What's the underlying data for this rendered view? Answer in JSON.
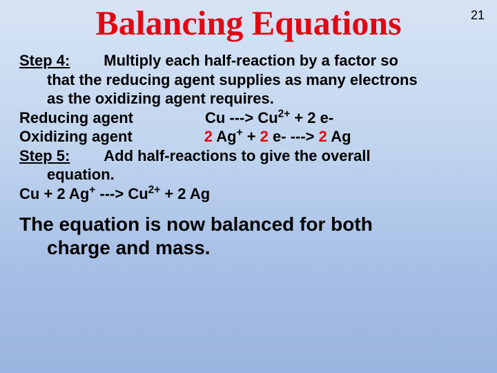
{
  "page_number": "21",
  "title": "Balancing Equations",
  "colors": {
    "title_color": "#e30613",
    "coeff_color": "#e30613",
    "text_color": "#000000",
    "bg_gradient_top": "#d8e4f5",
    "bg_gradient_bottom": "#98b4e0"
  },
  "fontsize": {
    "title": 50,
    "body": 22,
    "conclusion": 28,
    "page_number": 18
  },
  "step4": {
    "label": "Step 4:",
    "text_line1": "Multiply each half-reaction by a factor so",
    "text_line2": "that the reducing agent supplies as many electrons",
    "text_line3": "as the oxidizing agent requires."
  },
  "reducing": {
    "label": "Reducing agent",
    "reaction_pre": "Cu  --->   Cu",
    "reaction_post": "  +   2 e-",
    "sup": "2+"
  },
  "oxidizing": {
    "label": "Oxidizing agent",
    "coeff1": "2",
    "part1": " Ag",
    "sup1": "+",
    "part2": "  +  ",
    "coeff2": "2",
    "part3": " e-   --->  ",
    "coeff3": "2",
    "part4": " Ag"
  },
  "step5": {
    "label": "Step 5:",
    "text_line1": "Add half-reactions to give the overall",
    "text_line2": "equation."
  },
  "overall": {
    "lhs": "Cu  +  2 Ag",
    "sup1": "+",
    "arrow": "    --->    Cu",
    "sup2": "2+",
    "rhs": "  +   2 Ag"
  },
  "conclusion": {
    "line1": "The equation is now balanced for both",
    "line2": "charge and mass."
  }
}
